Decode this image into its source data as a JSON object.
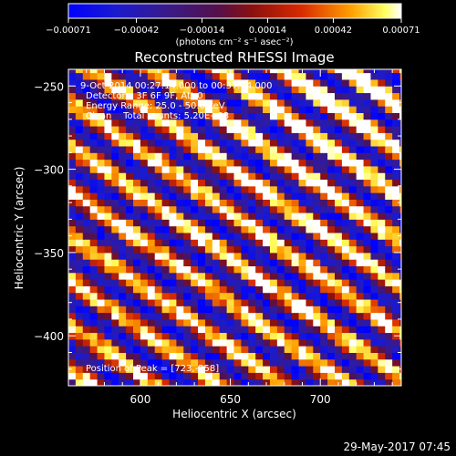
{
  "chart_data": {
    "type": "heatmap",
    "title": "Reconstructed RHESSI Image",
    "xlabel": "Heliocentric X (arcsec)",
    "ylabel": "Heliocentric Y (arcsec)",
    "xlim": [
      560,
      745
    ],
    "ylim": [
      -430,
      -240
    ],
    "x_ticks": [
      600,
      650,
      700
    ],
    "y_ticks": [
      -250,
      -300,
      -350,
      -400
    ],
    "x_tick_labels": [
      "600",
      "650",
      "700"
    ],
    "y_tick_labels": [
      "−250",
      "−300",
      "−350",
      "−400"
    ],
    "colorbar": {
      "range": [
        -0.00071,
        0.00071
      ],
      "ticks": [
        -0.00071,
        -0.00042,
        -0.00014,
        0.00014,
        0.00042,
        0.00071
      ],
      "tick_labels": [
        "−0.00071",
        "−0.00042",
        "−0.00014",
        "0.00014",
        "0.00042",
        "0.00071"
      ],
      "unit_label": "(photons cm⁻² s⁻¹ asec⁻²)",
      "colors": [
        "#0000ff",
        "#2a1a8a",
        "#551155",
        "#8a1a1a",
        "#d82a00",
        "#ff8a00",
        "#ffff60",
        "#ffffff"
      ]
    },
    "pixel_size_arcsec": 4,
    "pattern": "diagonal fringe stripes, positive (yellow/red) alternating with negative (blue/purple)",
    "annotations": {
      "time_range": "9-Oct-2014 00:27:14.000 to 00:37:14.000",
      "detectors": "Detectors: 3F 6F 9F, Att 0",
      "energy": "Energy Range: 25.0 - 50.0 keV",
      "clean": "Clean    Total counts: 5.20E+03",
      "peak": "Position of Peak = [723,-258]"
    }
  },
  "footer": {
    "date": "29-May-2017 07:45"
  }
}
